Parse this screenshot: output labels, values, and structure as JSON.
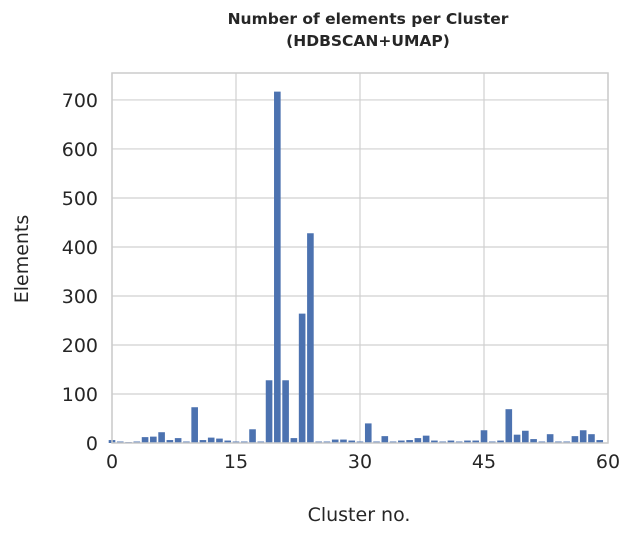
{
  "chart_data": {
    "type": "bar",
    "title_lines": [
      "Number of elements per Cluster",
      "(HDBSCAN+UMAP)"
    ],
    "xlabel": "Cluster no.",
    "ylabel": "Elements",
    "xlim": [
      0,
      60
    ],
    "ylim": [
      0,
      755
    ],
    "xticks": [
      0,
      15,
      30,
      45,
      60
    ],
    "yticks": [
      0,
      100,
      200,
      300,
      400,
      500,
      600,
      700
    ],
    "grid": true,
    "bar_color": "#4c72b0",
    "x": [
      0,
      1,
      2,
      3,
      4,
      5,
      6,
      7,
      8,
      9,
      10,
      11,
      12,
      13,
      14,
      15,
      16,
      17,
      18,
      19,
      20,
      21,
      22,
      23,
      24,
      25,
      26,
      27,
      28,
      29,
      30,
      31,
      32,
      33,
      34,
      35,
      36,
      37,
      38,
      39,
      40,
      41,
      42,
      43,
      44,
      45,
      46,
      47,
      48,
      49,
      50,
      51,
      52,
      53,
      54,
      55,
      56,
      57,
      58,
      59
    ],
    "values": [
      6,
      3,
      2,
      3,
      12,
      13,
      22,
      6,
      10,
      3,
      73,
      6,
      11,
      9,
      5,
      3,
      3,
      28,
      3,
      128,
      717,
      128,
      10,
      264,
      428,
      3,
      3,
      7,
      7,
      5,
      3,
      40,
      3,
      14,
      3,
      5,
      6,
      10,
      15,
      5,
      3,
      5,
      3,
      5,
      5,
      26,
      3,
      5,
      69,
      17,
      25,
      8,
      3,
      18,
      3,
      3,
      14,
      26,
      18,
      6
    ]
  }
}
